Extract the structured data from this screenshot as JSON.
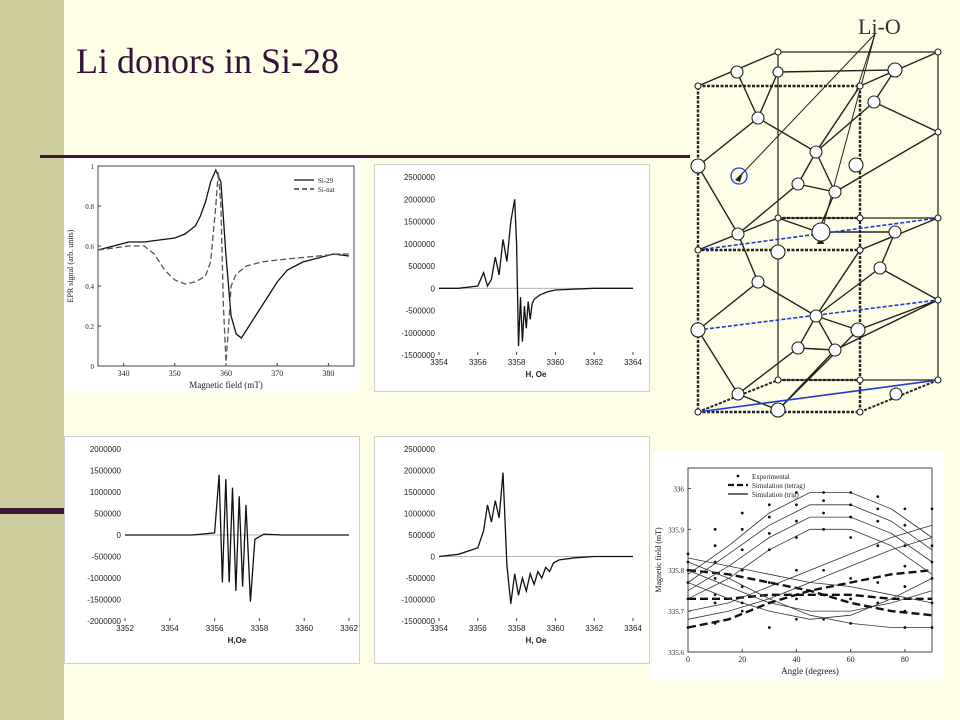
{
  "slide": {
    "title": "Li donors in Si-28",
    "lattice_label": "Li-O"
  },
  "colors": {
    "sidebar": "#cfcc9d",
    "accent": "#3a1a36",
    "title": "#33123a",
    "background": "#fefde6",
    "lattice_blue": "#1f3bd6"
  },
  "chart_data": [
    {
      "id": "p1",
      "type": "line",
      "xlabel": "Magnetic field (mT)",
      "ylabel": "EPR signal (arb. units)",
      "xlim": [
        335,
        385
      ],
      "ylim": [
        0,
        1
      ],
      "xticks": [
        "340",
        "350",
        "360",
        "370",
        "380"
      ],
      "yticks": [
        "0",
        "0.2",
        "0.4",
        "0.6",
        "0.8",
        "1"
      ],
      "legend": [
        "Si-29",
        "Si-nat"
      ],
      "legend_position": "top-right",
      "series": [
        {
          "name": "Si-29",
          "style": "solid",
          "x": [
            335,
            338,
            341,
            344,
            347,
            350,
            352,
            354,
            355,
            356,
            357,
            358,
            359,
            360,
            361,
            362,
            363,
            364,
            366,
            368,
            370,
            372,
            375,
            378,
            381,
            384
          ],
          "y": [
            0.58,
            0.6,
            0.62,
            0.62,
            0.63,
            0.64,
            0.66,
            0.7,
            0.75,
            0.82,
            0.92,
            0.98,
            0.92,
            0.55,
            0.25,
            0.16,
            0.14,
            0.18,
            0.26,
            0.34,
            0.42,
            0.48,
            0.52,
            0.54,
            0.56,
            0.55
          ]
        },
        {
          "name": "Si-nat",
          "style": "dashed",
          "x": [
            335,
            338,
            341,
            344,
            346,
            348,
            350,
            352,
            354,
            356,
            357,
            358,
            358.5,
            359,
            359.5,
            360,
            360.5,
            361,
            362,
            364,
            367,
            370,
            374,
            378,
            382,
            384
          ],
          "y": [
            0.58,
            0.59,
            0.6,
            0.6,
            0.56,
            0.48,
            0.43,
            0.41,
            0.42,
            0.45,
            0.52,
            0.8,
            0.97,
            0.8,
            0.3,
            0.02,
            0.2,
            0.4,
            0.46,
            0.5,
            0.52,
            0.53,
            0.54,
            0.55,
            0.56,
            0.56
          ]
        }
      ]
    },
    {
      "id": "p2",
      "type": "line",
      "xlabel": "H, Oe",
      "ylabel": "",
      "xlim": [
        3354,
        3364
      ],
      "ylim": [
        -1500000,
        2500000
      ],
      "xticks": [
        "3354",
        "3356",
        "3358",
        "3360",
        "3362",
        "3364"
      ],
      "yticks": [
        "-1500000",
        "-1000000",
        "-500000",
        "0",
        "500000",
        "1000000",
        "1500000",
        "2000000",
        "2500000"
      ],
      "series": [
        {
          "name": "",
          "x": [
            3354,
            3355,
            3356,
            3356.3,
            3356.5,
            3356.7,
            3356.9,
            3357.1,
            3357.3,
            3357.5,
            3357.7,
            3357.9,
            3358.0,
            3358.1,
            3358.2,
            3358.3,
            3358.4,
            3358.5,
            3358.6,
            3358.7,
            3358.8,
            3358.9,
            3359.2,
            3359.6,
            3360,
            3361,
            3362,
            3364
          ],
          "y": [
            0,
            0,
            50000,
            350000,
            50000,
            200000,
            700000,
            300000,
            1100000,
            600000,
            1500000,
            2000000,
            1000000,
            -1300000,
            -200000,
            -1200000,
            -400000,
            -900000,
            -300000,
            -700000,
            -350000,
            -250000,
            -150000,
            -80000,
            -40000,
            -20000,
            0,
            0
          ]
        }
      ]
    },
    {
      "id": "p3",
      "type": "line",
      "xlabel": "H,Oe",
      "ylabel": "",
      "xlim": [
        3352,
        3362
      ],
      "ylim": [
        -2000000,
        2000000
      ],
      "xticks": [
        "3352",
        "3354",
        "3356",
        "3358",
        "3360",
        "3362"
      ],
      "yticks": [
        "-2000000",
        "-1500000",
        "-1000000",
        "-500000",
        "0",
        "500000",
        "1000000",
        "1500000",
        "2000000"
      ],
      "series": [
        {
          "name": "",
          "x": [
            3352,
            3355,
            3356,
            3356.2,
            3356.35,
            3356.5,
            3356.65,
            3356.8,
            3356.95,
            3357.1,
            3357.25,
            3357.4,
            3357.6,
            3357.8,
            3358.2,
            3359,
            3360,
            3362
          ],
          "y": [
            0,
            0,
            50000,
            1400000,
            -1100000,
            1300000,
            -1100000,
            1100000,
            -1300000,
            900000,
            -1200000,
            700000,
            -1550000,
            -100000,
            20000,
            0,
            0,
            0
          ]
        }
      ]
    },
    {
      "id": "p4",
      "type": "line",
      "xlabel": "H, Oe",
      "ylabel": "",
      "xlim": [
        3354,
        3364
      ],
      "ylim": [
        -1500000,
        2500000
      ],
      "xticks": [
        "3354",
        "3356",
        "3358",
        "3360",
        "3362",
        "3364"
      ],
      "yticks": [
        "-1500000",
        "-1000000",
        "-500000",
        "0",
        "500000",
        "1000000",
        "1500000",
        "2000000",
        "2500000"
      ],
      "series": [
        {
          "name": "",
          "x": [
            3354,
            3355,
            3356,
            3356.3,
            3356.5,
            3356.7,
            3356.9,
            3357.1,
            3357.3,
            3357.5,
            3357.7,
            3357.9,
            3358.1,
            3358.3,
            3358.5,
            3358.7,
            3358.9,
            3359.1,
            3359.3,
            3359.5,
            3359.7,
            3359.9,
            3360.2,
            3361,
            3362,
            3364
          ],
          "y": [
            0,
            50000,
            200000,
            600000,
            1200000,
            800000,
            1300000,
            900000,
            1950000,
            -200000,
            -1100000,
            -400000,
            -900000,
            -500000,
            -800000,
            -400000,
            -650000,
            -350000,
            -500000,
            -250000,
            -350000,
            -150000,
            -80000,
            -30000,
            0,
            0
          ]
        }
      ]
    },
    {
      "id": "p5",
      "type": "scatter",
      "xlabel": "Angle (degrees)",
      "ylabel": "Magnetic field (mT)",
      "xlim": [
        0,
        90
      ],
      "ylim": [
        335.6,
        336.05
      ],
      "xticks": [
        "0",
        "20",
        "40",
        "60",
        "80"
      ],
      "yticks": [
        "335.6",
        "335.7",
        "335.8",
        "335.9",
        "336"
      ],
      "legend": [
        "Experimental",
        "Simulation (tetrag)",
        "Simulation (trig)"
      ],
      "legend_position": "top",
      "series": [
        {
          "name": "Simulation (tetrag)",
          "style": "dashed-thick",
          "x": [
            0,
            15,
            30,
            45,
            60,
            75,
            90
          ],
          "y": [
            335.66,
            335.68,
            335.72,
            335.75,
            335.77,
            335.79,
            335.8
          ]
        },
        {
          "name": "Simulation (tetrag)",
          "style": "dashed-thick",
          "x": [
            0,
            15,
            30,
            45,
            60,
            75,
            90
          ],
          "y": [
            335.8,
            335.79,
            335.77,
            335.75,
            335.72,
            335.7,
            335.69
          ]
        },
        {
          "name": "Simulation (tetrag)",
          "style": "dashed-thick",
          "x": [
            0,
            15,
            30,
            45,
            60,
            75,
            90
          ],
          "y": [
            335.73,
            335.73,
            335.74,
            335.74,
            335.74,
            335.73,
            335.73
          ]
        },
        {
          "name": "Simulation (trig)",
          "style": "solid",
          "x": [
            0,
            15,
            30,
            45,
            60,
            75,
            90
          ],
          "y": [
            335.79,
            335.86,
            335.94,
            335.99,
            335.99,
            335.95,
            335.88
          ]
        },
        {
          "name": "Simulation (trig)",
          "style": "solid",
          "x": [
            0,
            15,
            30,
            45,
            60,
            75,
            90
          ],
          "y": [
            335.77,
            335.84,
            335.91,
            335.96,
            335.96,
            335.92,
            335.85
          ]
        },
        {
          "name": "Simulation (trig)",
          "style": "solid",
          "x": [
            0,
            15,
            30,
            45,
            60,
            75,
            90
          ],
          "y": [
            335.75,
            335.81,
            335.88,
            335.93,
            335.93,
            335.89,
            335.82
          ]
        },
        {
          "name": "Simulation (trig)",
          "style": "solid",
          "x": [
            0,
            15,
            30,
            45,
            60,
            75,
            90
          ],
          "y": [
            335.73,
            335.78,
            335.85,
            335.9,
            335.9,
            335.86,
            335.79
          ]
        },
        {
          "name": "Simulation (trig)",
          "style": "solid",
          "x": [
            0,
            15,
            30,
            45,
            60,
            75,
            90
          ],
          "y": [
            335.82,
            335.78,
            335.73,
            335.69,
            335.67,
            335.66,
            335.66
          ]
        },
        {
          "name": "Simulation (trig)",
          "style": "solid",
          "x": [
            0,
            15,
            30,
            45,
            60,
            75,
            90
          ],
          "y": [
            335.8,
            335.76,
            335.72,
            335.7,
            335.7,
            335.72,
            335.75
          ]
        },
        {
          "name": "Simulation (trig)",
          "style": "solid",
          "x": [
            0,
            15,
            30,
            45,
            60,
            75,
            90
          ],
          "y": [
            335.77,
            335.73,
            335.7,
            335.68,
            335.69,
            335.73,
            335.78
          ]
        },
        {
          "name": "Simulation (trig)",
          "style": "solid",
          "x": [
            0,
            15,
            30,
            45,
            60,
            75,
            90
          ],
          "y": [
            335.7,
            335.72,
            335.76,
            335.8,
            335.84,
            335.88,
            335.91
          ]
        },
        {
          "name": "Simulation (trig)",
          "style": "solid",
          "x": [
            0,
            15,
            30,
            45,
            60,
            75,
            90
          ],
          "y": [
            335.68,
            335.7,
            335.73,
            335.77,
            335.81,
            335.85,
            335.88
          ]
        },
        {
          "name": "Simulation (trig)",
          "style": "solid",
          "x": [
            0,
            15,
            30,
            45,
            60,
            75,
            90
          ],
          "y": [
            335.83,
            335.81,
            335.79,
            335.77,
            335.76,
            335.74,
            335.72
          ]
        },
        {
          "name": "Experimental",
          "style": "points",
          "x": [
            0,
            0,
            0,
            0,
            0,
            0,
            10,
            10,
            10,
            10,
            10,
            10,
            10,
            20,
            20,
            20,
            20,
            20,
            20,
            20,
            30,
            30,
            30,
            30,
            30,
            30,
            30,
            40,
            40,
            40,
            40,
            40,
            40,
            40,
            50,
            50,
            50,
            50,
            50,
            50,
            50,
            60,
            60,
            60,
            60,
            60,
            60,
            60,
            70,
            70,
            70,
            70,
            70,
            70,
            80,
            80,
            80,
            80,
            80,
            80,
            80,
            90,
            90,
            90,
            90,
            90,
            90
          ],
          "y": [
            335.66,
            335.73,
            335.77,
            335.8,
            335.82,
            335.84,
            335.67,
            335.72,
            335.78,
            335.82,
            335.86,
            335.9,
            335.74,
            335.7,
            335.76,
            335.8,
            335.85,
            335.9,
            335.94,
            335.72,
            335.72,
            335.77,
            335.85,
            335.89,
            335.93,
            335.96,
            335.66,
            335.73,
            335.8,
            335.88,
            335.92,
            335.96,
            335.99,
            335.68,
            335.74,
            335.8,
            335.9,
            335.94,
            335.97,
            335.99,
            335.68,
            335.73,
            335.78,
            335.88,
            335.93,
            335.96,
            335.99,
            335.67,
            335.72,
            335.77,
            335.86,
            335.92,
            335.95,
            335.98,
            335.66,
            335.7,
            335.76,
            335.81,
            335.86,
            335.91,
            335.95,
            335.66,
            335.72,
            335.78,
            335.82,
            335.86,
            335.95
          ]
        }
      ]
    }
  ]
}
